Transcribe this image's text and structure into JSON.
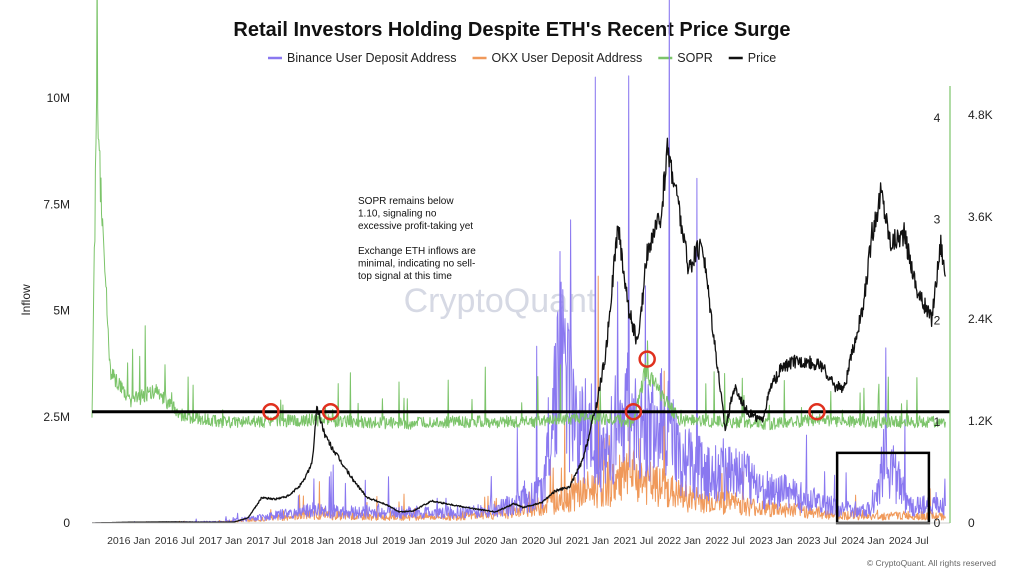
{
  "chart_data": {
    "type": "line",
    "title": "Retail Investors Holding Despite ETH's Recent Price Surge",
    "ylabel_left": "Inflow",
    "ylim_left": [
      0,
      10000000
    ],
    "ylim_sopr": [
      0,
      4.2
    ],
    "ylim_price": [
      0,
      5000
    ],
    "left_ticks": [
      {
        "value": 0,
        "label": "0"
      },
      {
        "value": 2500000,
        "label": "2.5M"
      },
      {
        "value": 5000000,
        "label": "5M"
      },
      {
        "value": 7500000,
        "label": "7.5M"
      },
      {
        "value": 10000000,
        "label": "10M"
      }
    ],
    "sopr_ticks": [
      {
        "value": 0,
        "label": "0"
      },
      {
        "value": 1,
        "label": "1"
      },
      {
        "value": 2,
        "label": "2"
      },
      {
        "value": 3,
        "label": "3"
      },
      {
        "value": 4,
        "label": "4"
      }
    ],
    "price_ticks": [
      {
        "value": 0,
        "label": "0"
      },
      {
        "value": 1200,
        "label": "1.2K"
      },
      {
        "value": 2400,
        "label": "2.4K"
      },
      {
        "value": 3600,
        "label": "3.6K"
      },
      {
        "value": 4800,
        "label": "4.8K"
      }
    ],
    "x_ticks": [
      "2016 Jan",
      "2016 Jul",
      "2017 Jan",
      "2017 Jul",
      "2018 Jan",
      "2018 Jul",
      "2019 Jan",
      "2019 Jul",
      "2020 Jan",
      "2020 Jul",
      "2021 Jan",
      "2021 Jul",
      "2022 Jan",
      "2022 Jul",
      "2023 Jan",
      "2023 Jul",
      "2024 Jan",
      "2024 Jul"
    ],
    "xlim": [
      2015.6,
      2024.95
    ],
    "legend": [
      {
        "name": "Binance User Deposit Address",
        "color": "#8a78f0"
      },
      {
        "name": "OKX User Deposit Address",
        "color": "#f0995a"
      },
      {
        "name": "SOPR",
        "color": "#7cc46a"
      },
      {
        "name": "Price",
        "color": "#111111"
      }
    ],
    "series": [
      {
        "name": "Price",
        "axis": "price",
        "x": [
          2015.6,
          2016.0,
          2016.3,
          2016.5,
          2016.9,
          2017.15,
          2017.3,
          2017.45,
          2017.6,
          2017.75,
          2017.9,
          2018.0,
          2018.05,
          2018.15,
          2018.3,
          2018.45,
          2018.6,
          2018.8,
          2018.95,
          2019.1,
          2019.3,
          2019.5,
          2019.75,
          2020.0,
          2020.2,
          2020.3,
          2020.5,
          2020.65,
          2020.8,
          2020.95,
          2021.1,
          2021.2,
          2021.33,
          2021.45,
          2021.55,
          2021.65,
          2021.8,
          2021.87,
          2021.95,
          2022.1,
          2022.25,
          2022.4,
          2022.5,
          2022.6,
          2022.75,
          2022.9,
          2023.0,
          2023.1,
          2023.25,
          2023.4,
          2023.55,
          2023.7,
          2023.8,
          2023.95,
          2024.0,
          2024.1,
          2024.2,
          2024.3,
          2024.45,
          2024.6,
          2024.75,
          2024.85,
          2024.9
        ],
        "values": [
          1,
          9,
          12,
          13,
          9,
          12,
          60,
          300,
          280,
          320,
          480,
          720,
          1350,
          1000,
          740,
          500,
          300,
          220,
          130,
          140,
          260,
          220,
          170,
          130,
          230,
          180,
          240,
          380,
          420,
          740,
          1400,
          2000,
          3500,
          2500,
          2100,
          3200,
          3600,
          4400,
          4000,
          3000,
          3300,
          2000,
          1100,
          1600,
          1300,
          1200,
          1600,
          1800,
          1900,
          1900,
          1850,
          1600,
          1600,
          2300,
          2500,
          3400,
          3900,
          3300,
          3400,
          2700,
          2400,
          3300,
          2900
        ]
      },
      {
        "name": "SOPR",
        "axis": "sopr",
        "x": [
          2015.6,
          2015.65,
          2015.8,
          2016.0,
          2016.3,
          2016.6,
          2017.0,
          2017.5,
          2018.0,
          2018.5,
          2019.0,
          2019.5,
          2020.0,
          2020.5,
          2021.0,
          2021.5,
          2021.63,
          2022.0,
          2022.5,
          2023.0,
          2023.5,
          2024.0,
          2024.5,
          2024.9
        ],
        "values": [
          1.05,
          4.1,
          1.5,
          1.2,
          1.3,
          1.05,
          1.0,
          1.0,
          1.02,
          1.0,
          0.98,
          1.0,
          1.0,
          1.0,
          1.05,
          1.0,
          1.5,
          1.02,
          1.0,
          0.98,
          1.02,
          1.0,
          1.0,
          1.0
        ]
      },
      {
        "name": "Binance User Deposit Address",
        "axis": "inflow",
        "x": [
          2015.6,
          2017.0,
          2017.5,
          2018.0,
          2018.5,
          2019.0,
          2019.5,
          2020.0,
          2020.5,
          2020.7,
          2020.9,
          2021.0,
          2021.2,
          2021.4,
          2021.6,
          2021.8,
          2022.0,
          2022.3,
          2022.6,
          2022.9,
          2023.2,
          2023.5,
          2023.8,
          2024.1,
          2024.25,
          2024.5,
          2024.9
        ],
        "values": [
          0,
          30000,
          150000,
          300000,
          250000,
          250000,
          250000,
          300000,
          700000,
          4000000,
          2000000,
          2200000,
          1500000,
          2800000,
          2000000,
          2500000,
          1500000,
          1200000,
          1300000,
          800000,
          700000,
          500000,
          300000,
          350000,
          1600000,
          400000,
          400000
        ]
      },
      {
        "name": "OKX User Deposit Address",
        "axis": "inflow",
        "x": [
          2015.6,
          2017.0,
          2017.5,
          2018.0,
          2018.5,
          2019.0,
          2019.5,
          2020.0,
          2020.5,
          2020.9,
          2021.2,
          2021.5,
          2021.8,
          2022.1,
          2022.5,
          2022.9,
          2023.3,
          2023.7,
          2024.1,
          2024.5,
          2024.9
        ],
        "values": [
          0,
          20000,
          100000,
          200000,
          150000,
          150000,
          150000,
          200000,
          400000,
          700000,
          900000,
          1100000,
          800000,
          600000,
          500000,
          350000,
          300000,
          200000,
          150000,
          180000,
          150000
        ]
      }
    ],
    "threshold_line": {
      "sopr": 1.1
    },
    "highlight_circles": [
      {
        "x": 2017.55,
        "sopr": 1.1
      },
      {
        "x": 2018.2,
        "sopr": 1.1
      },
      {
        "x": 2021.5,
        "sopr": 1.1
      },
      {
        "x": 2021.65,
        "sopr": 1.62
      },
      {
        "x": 2023.5,
        "sopr": 1.1
      }
    ],
    "highlight_box": {
      "x": [
        2023.72,
        2024.72
      ],
      "inflow": [
        0,
        1650000
      ]
    },
    "annotation_lines": [
      "SOPR remains below",
      "1.10, signaling no",
      "excessive profit-taking yet",
      "",
      "Exchange ETH inflows are",
      "minimal, indicating no sell-",
      "top signal at this time"
    ],
    "watermark": "CryptoQuant",
    "copyright": "© CryptoQuant. All rights reserved"
  }
}
